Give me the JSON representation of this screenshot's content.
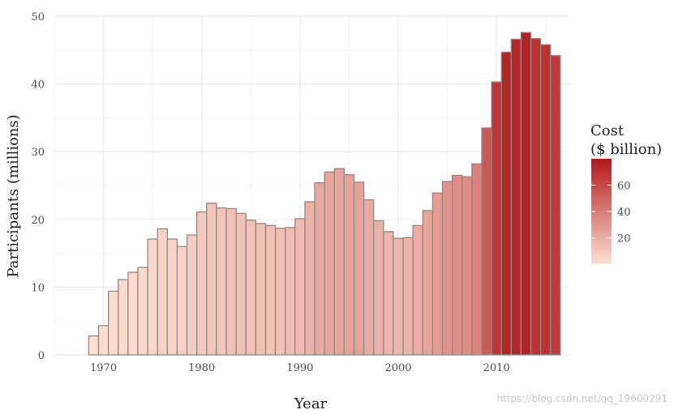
{
  "chart_data": {
    "type": "bar",
    "title": "",
    "xlabel": "Year",
    "ylabel": "Participants (millions)",
    "xlim": [
      1965,
      2017.5
    ],
    "ylim": [
      0,
      50
    ],
    "x_ticks": [
      1970,
      1980,
      1990,
      2000,
      2010
    ],
    "y_ticks": [
      0,
      10,
      20,
      30,
      40,
      50
    ],
    "grid": true,
    "legend": {
      "title_line1": "Cost",
      "title_line2": "($ billion)",
      "ticks": [
        20,
        40,
        60
      ],
      "range": [
        0,
        80
      ],
      "placement": "right",
      "color_low": "#fee0d2",
      "color_high": "#b2181b"
    },
    "bar_outline_color": "#8c8c8c",
    "years": [
      1969,
      1970,
      1971,
      1972,
      1973,
      1974,
      1975,
      1976,
      1977,
      1978,
      1979,
      1980,
      1981,
      1982,
      1983,
      1984,
      1985,
      1986,
      1987,
      1988,
      1989,
      1990,
      1991,
      1992,
      1993,
      1994,
      1995,
      1996,
      1997,
      1998,
      1999,
      2000,
      2001,
      2002,
      2003,
      2004,
      2005,
      2006,
      2007,
      2008,
      2009,
      2010,
      2011,
      2012,
      2013,
      2014,
      2015,
      2016
    ],
    "participants": [
      2.8,
      4.3,
      9.4,
      11.1,
      12.2,
      12.9,
      17.1,
      18.6,
      17.1,
      16.0,
      17.7,
      21.1,
      22.4,
      21.7,
      21.6,
      20.9,
      19.9,
      19.4,
      19.1,
      18.7,
      18.8,
      20.1,
      22.6,
      25.4,
      27.0,
      27.5,
      26.6,
      25.5,
      22.9,
      19.8,
      18.2,
      17.2,
      17.3,
      19.1,
      21.3,
      23.9,
      25.6,
      26.5,
      26.3,
      28.2,
      33.5,
      40.3,
      44.7,
      46.6,
      47.6,
      46.7,
      45.8,
      44.2
    ],
    "cost": [
      0.3,
      0.6,
      1.6,
      1.9,
      2.2,
      2.8,
      4.6,
      5.7,
      5.5,
      5.5,
      6.9,
      9.2,
      11.3,
      11.2,
      12.7,
      12.5,
      12.6,
      12.6,
      12.6,
      13.2,
      14.1,
      15.5,
      18.7,
      22.5,
      23.6,
      24.5,
      24.6,
      24.3,
      21.5,
      18.9,
      17.7,
      17.1,
      17.8,
      20.6,
      23.8,
      27.2,
      31.1,
      32.9,
      33.2,
      37.6,
      53.6,
      68.3,
      75.7,
      74.6,
      76.1,
      70.0,
      69.7,
      66.5
    ]
  }
}
